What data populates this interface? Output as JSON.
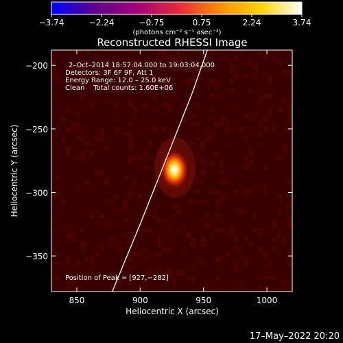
{
  "chart_data": {
    "type": "heatmap",
    "title": "Reconstructed RHESSI Image",
    "xlabel": "Heliocentric X (arcsec)",
    "ylabel": "Heliocentric Y (arcsec)",
    "xlim": [
      830,
      1020
    ],
    "ylim": [
      -378,
      -188
    ],
    "x_ticks": [
      850,
      900,
      950,
      1000
    ],
    "y_ticks": [
      -200,
      -250,
      -300,
      -350
    ],
    "x_tick_labels": [
      "850",
      "900",
      "950",
      "1000"
    ],
    "y_tick_labels": [
      "−200",
      "−250",
      "−300",
      "−350"
    ],
    "colorbar": {
      "ticks": [
        "−3.74",
        "−2.24",
        "−0.75",
        "0.75",
        "2.24",
        "3.74"
      ],
      "range": [
        -3.74,
        3.74
      ],
      "unit_label": "(photons cm⁻² s⁻¹ asec⁻²)",
      "colormap": "red-temperature",
      "stops": [
        "#0000ff",
        "#5a0090",
        "#a0007a",
        "#e6263c",
        "#ff8a00",
        "#ffd400",
        "#ffffff"
      ]
    },
    "source": {
      "x": 927,
      "y": -282,
      "peak": 3.74
    },
    "background_level": 0.45,
    "limb_curve": [
      [
        878,
        -378
      ],
      [
        900,
        -325
      ],
      [
        922,
        -270
      ],
      [
        941,
        -222
      ],
      [
        953,
        -188
      ]
    ],
    "annotations": [
      "2–Oct–2014 18:57:04.000 to 19:03:04.000",
      "Detectors: 3F 6F 9F, Att 1",
      "Energy Range: 12.0 – 25.0 keV",
      "Clean    Total counts: 1.60E+06"
    ],
    "peak_label": "Position of Peak = [927,−282]",
    "colors": {
      "background": "#000000",
      "limb": "#ffffff",
      "text": "#ffffff"
    }
  },
  "footer": {
    "timestamp": "17–May–2022 20:20"
  }
}
